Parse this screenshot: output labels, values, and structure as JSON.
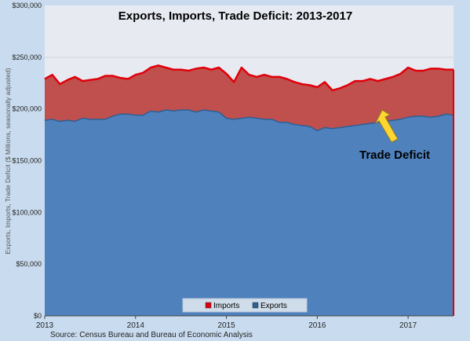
{
  "chart_data": {
    "type": "area",
    "title": "Exports, Imports, Trade Deficit: 2013-2017",
    "ylabel": "Exports, Imports, Trade Deficit ($ Millions, seasonally adjusted)",
    "xlabel": "",
    "ylim": [
      0,
      300000
    ],
    "y_ticks": [
      "$0",
      "$50,000",
      "$100,000",
      "$150,000",
      "$200,000",
      "$250,000",
      "$300,000"
    ],
    "y_tick_values": [
      0,
      50000,
      100000,
      150000,
      200000,
      250000,
      300000
    ],
    "xlim": [
      2013.0,
      2017.5
    ],
    "x_ticks": [
      "2013",
      "2014",
      "2015",
      "2016",
      "2017"
    ],
    "x_tick_values": [
      2013,
      2014,
      2015,
      2016,
      2017
    ],
    "grid": true,
    "legend_position": "bottom-center",
    "annotation": "Trade Deficit",
    "source": "Source: Census Bureau and Bureau of Economic Analysis",
    "x": [
      2013.0,
      2013.083,
      2013.167,
      2013.25,
      2013.333,
      2013.417,
      2013.5,
      2013.583,
      2013.667,
      2013.75,
      2013.833,
      2013.917,
      2014.0,
      2014.083,
      2014.167,
      2014.25,
      2014.333,
      2014.417,
      2014.5,
      2014.583,
      2014.667,
      2014.75,
      2014.833,
      2014.917,
      2015.0,
      2015.083,
      2015.167,
      2015.25,
      2015.333,
      2015.417,
      2015.5,
      2015.583,
      2015.667,
      2015.75,
      2015.833,
      2015.917,
      2016.0,
      2016.083,
      2016.167,
      2016.25,
      2016.333,
      2016.417,
      2016.5,
      2016.583,
      2016.667,
      2016.75,
      2016.833,
      2016.917,
      2017.0,
      2017.083,
      2017.167,
      2017.25,
      2017.333,
      2017.417,
      2017.5
    ],
    "series": [
      {
        "name": "Imports",
        "color": "#c0504d",
        "line_color": "#e0000a",
        "values": [
          229000,
          233000,
          224000,
          228000,
          231000,
          227000,
          228000,
          229000,
          232000,
          232000,
          230000,
          229000,
          233000,
          235000,
          240000,
          242000,
          240000,
          238000,
          238000,
          237000,
          239000,
          240000,
          238000,
          240000,
          234000,
          226000,
          240000,
          233000,
          231000,
          233000,
          231000,
          231000,
          229000,
          226000,
          224000,
          223000,
          221000,
          226000,
          218000,
          220000,
          223000,
          227000,
          227000,
          229000,
          227000,
          229000,
          231000,
          234000,
          240000,
          237000,
          237000,
          239000,
          239000,
          238000,
          238000
        ]
      },
      {
        "name": "Exports",
        "color": "#4f81bd",
        "line_color": "#2e5f95",
        "values": [
          189000,
          190000,
          188000,
          189000,
          188000,
          191000,
          190000,
          190000,
          190000,
          193000,
          195000,
          195000,
          194000,
          194000,
          198000,
          197000,
          199000,
          198000,
          199000,
          199000,
          197000,
          199000,
          198000,
          197000,
          191000,
          190000,
          191000,
          192000,
          191000,
          190000,
          190000,
          187000,
          187000,
          185000,
          184000,
          183000,
          179000,
          182000,
          181000,
          182000,
          183000,
          184000,
          185000,
          186000,
          187000,
          188000,
          189000,
          190000,
          192000,
          193000,
          193000,
          192000,
          193000,
          195000,
          194000
        ]
      }
    ]
  }
}
